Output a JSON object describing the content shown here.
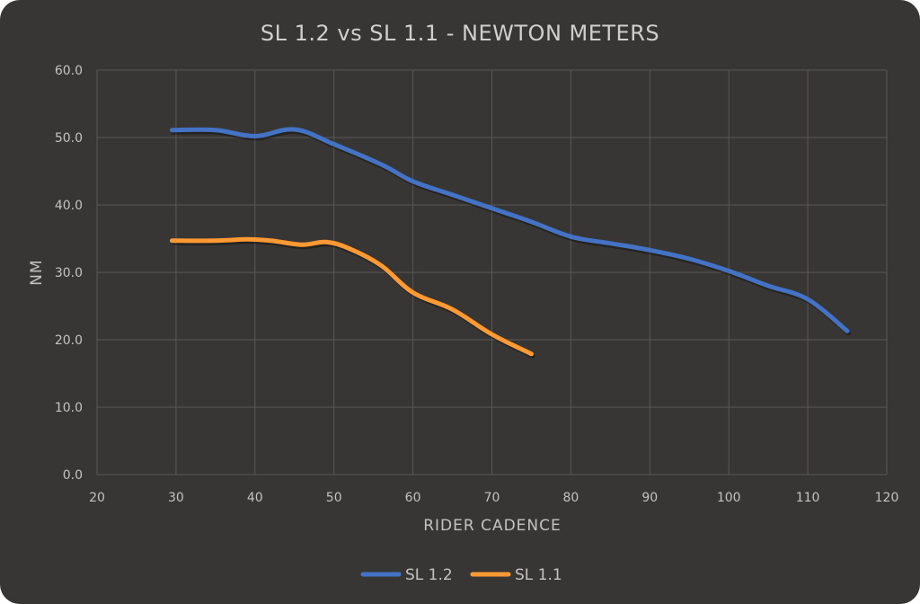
{
  "chart_data": {
    "type": "line",
    "title": "SL 1.2 vs SL 1.1 - NEWTON METERS",
    "xlabel": "RIDER CADENCE",
    "ylabel": "NM",
    "xlim": [
      20,
      120
    ],
    "ylim": [
      0,
      60
    ],
    "x_ticks": [
      "20",
      "30",
      "40",
      "50",
      "60",
      "70",
      "80",
      "90",
      "100",
      "110",
      "120"
    ],
    "x_tick_values": [
      20,
      30,
      40,
      50,
      60,
      70,
      80,
      90,
      100,
      110,
      120
    ],
    "y_ticks": [
      "0.0",
      "10.0",
      "20.0",
      "30.0",
      "40.0",
      "50.0",
      "60.0"
    ],
    "y_tick_values": [
      0,
      10,
      20,
      30,
      40,
      50,
      60
    ],
    "grid": true,
    "legend_position": "bottom",
    "series": [
      {
        "name": "SL 1.2",
        "color": "#4472c4",
        "x": [
          29.5,
          35,
          40,
          45,
          50,
          56,
          60,
          65,
          70,
          75,
          80,
          85,
          90,
          95,
          100,
          105,
          110,
          115
        ],
        "y": [
          51.1,
          51.1,
          50.2,
          51.2,
          49.0,
          46.0,
          43.5,
          41.5,
          39.5,
          37.5,
          35.3,
          34.3,
          33.3,
          32.0,
          30.2,
          28.0,
          26.0,
          21.3
        ]
      },
      {
        "name": "SL 1.1",
        "color": "#ff9933",
        "x": [
          29.5,
          35,
          39,
          42,
          46,
          49,
          52,
          56,
          60,
          65,
          70,
          75
        ],
        "y": [
          34.7,
          34.7,
          34.9,
          34.7,
          34.1,
          34.5,
          33.5,
          31.0,
          27.0,
          24.5,
          20.8,
          17.9
        ]
      }
    ]
  }
}
